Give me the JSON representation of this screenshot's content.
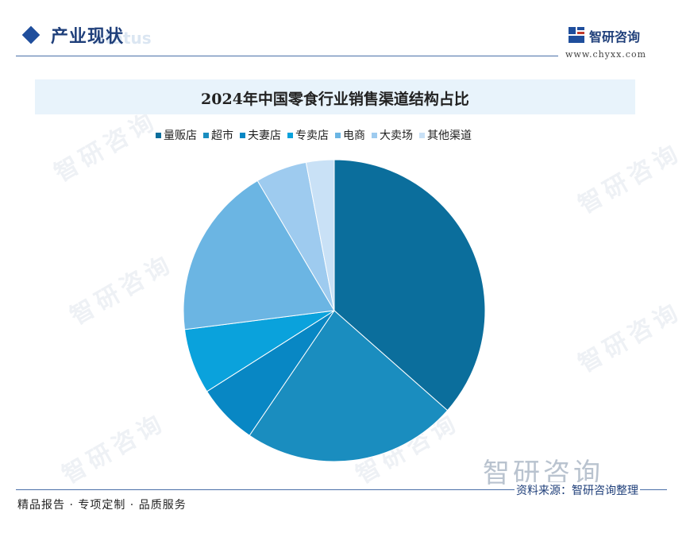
{
  "header": {
    "section_title": "产业现状",
    "ghost_text": "status",
    "brand_name": "智研咨询",
    "brand_url": "www.chyxx.com"
  },
  "watermark": {
    "text": "智研咨询"
  },
  "chart_data": {
    "type": "pie",
    "title": "2024年中国零食行业销售渠道结构占比",
    "legend_position": "top",
    "categories": [
      "量贩店",
      "超市",
      "夫妻店",
      "专卖店",
      "电商",
      "大卖场",
      "其他渠道"
    ],
    "values": [
      36.5,
      23.0,
      6.5,
      7.0,
      18.5,
      5.5,
      3.0
    ],
    "colors": [
      "#0b6e9c",
      "#1a8dbf",
      "#0887c4",
      "#0aa2dc",
      "#6bb5e3",
      "#9ecbef",
      "#c9e1f6"
    ]
  },
  "footer": {
    "left": "精品报告 · 专项定制 · 品质服务",
    "source": "资料来源：智研咨询整理"
  }
}
